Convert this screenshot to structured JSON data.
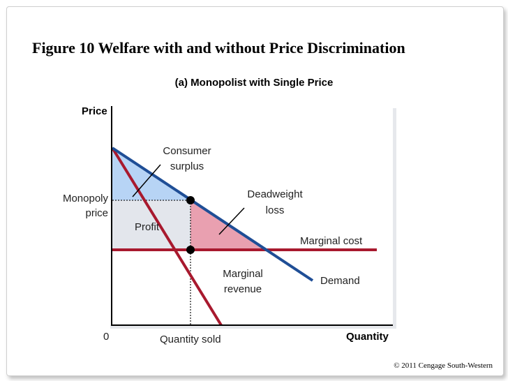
{
  "figure_title": "Figure 10 Welfare with and without Price Discrimination",
  "panel_title": "(a) Monopolist with Single Price",
  "axes": {
    "y_label": "Price",
    "x_label": "Quantity",
    "origin_label": "0"
  },
  "labels": {
    "monopoly_price": [
      "Monopoly",
      "price"
    ],
    "quantity_sold": "Quantity sold",
    "consumer_surplus": [
      "Consumer",
      "surplus"
    ],
    "deadweight_loss": [
      "Deadweight",
      "loss"
    ],
    "profit": "Profit",
    "marginal_cost": "Marginal cost",
    "marginal_revenue": [
      "Marginal",
      "revenue"
    ],
    "demand": "Demand"
  },
  "colors": {
    "demand": "#1f4e96",
    "marginal": "#a8192e",
    "consumer_surplus_fill": "#b7d4f5",
    "deadweight_fill": "#e9a0b0",
    "profit_fill": "#e3e6ec"
  },
  "copyright": "© 2011 Cengage South-Western"
}
